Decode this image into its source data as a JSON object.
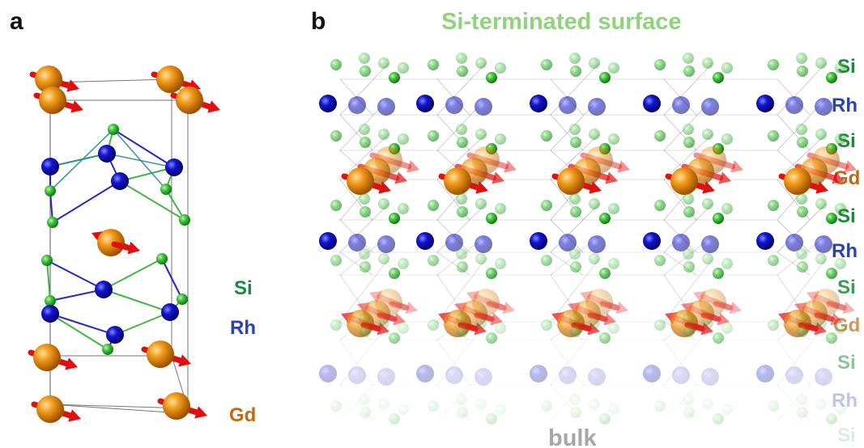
{
  "panel_a": {
    "label": "a",
    "legend": [
      "Si",
      "Rh",
      "Gd"
    ]
  },
  "panel_b": {
    "label": "b",
    "title": "Si-terminated surface",
    "bottom_label": "bulk",
    "layers": [
      "Si",
      "Rh",
      "Si",
      "Gd",
      "Si",
      "Rh",
      "Si",
      "Gd",
      "Si",
      "Rh",
      "Si"
    ]
  },
  "colors": {
    "si": "#2fae2f",
    "rh": "#1010c8",
    "gd": "#e08a10",
    "arrow": "#e01010",
    "si_label": "#1a8a3a",
    "rh_label": "#2a43b0",
    "gd_label": "#c06a10",
    "title": "#8fd47c",
    "bulk": "#a7a7a7",
    "bond_si_rh": "#2a7a6a"
  }
}
